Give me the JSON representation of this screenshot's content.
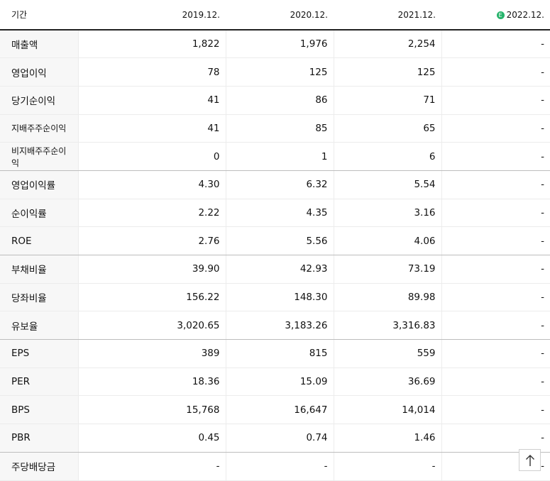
{
  "header": {
    "label": "기간",
    "periods": [
      "2019.12.",
      "2020.12.",
      "2021.12.",
      "2022.12."
    ],
    "estimate_badge": "E"
  },
  "rows": [
    {
      "label": "매출액",
      "values": [
        "1,822",
        "1,976",
        "2,254",
        "-"
      ]
    },
    {
      "label": "영업이익",
      "values": [
        "78",
        "125",
        "125",
        "-"
      ]
    },
    {
      "label": "당기순이익",
      "values": [
        "41",
        "86",
        "71",
        "-"
      ]
    },
    {
      "label": "지배주주순이익",
      "values": [
        "41",
        "85",
        "65",
        "-"
      ]
    },
    {
      "label": "비지배주주순이익",
      "values": [
        "0",
        "1",
        "6",
        "-"
      ]
    },
    {
      "label": "영업이익률",
      "values": [
        "4.30",
        "6.32",
        "5.54",
        "-"
      ]
    },
    {
      "label": "순이익률",
      "values": [
        "2.22",
        "4.35",
        "3.16",
        "-"
      ]
    },
    {
      "label": "ROE",
      "values": [
        "2.76",
        "5.56",
        "4.06",
        "-"
      ]
    },
    {
      "label": "부채비율",
      "values": [
        "39.90",
        "42.93",
        "73.19",
        "-"
      ]
    },
    {
      "label": "당좌비율",
      "values": [
        "156.22",
        "148.30",
        "89.98",
        "-"
      ]
    },
    {
      "label": "유보율",
      "values": [
        "3,020.65",
        "3,183.26",
        "3,316.83",
        "-"
      ]
    },
    {
      "label": "EPS",
      "values": [
        "389",
        "815",
        "559",
        "-"
      ]
    },
    {
      "label": "PER",
      "values": [
        "18.36",
        "15.09",
        "36.69",
        "-"
      ]
    },
    {
      "label": "BPS",
      "values": [
        "15,768",
        "16,647",
        "14,014",
        "-"
      ]
    },
    {
      "label": "PBR",
      "values": [
        "0.45",
        "0.74",
        "1.46",
        "-"
      ]
    },
    {
      "label": "주당배당금",
      "values": [
        "-",
        "-",
        "-",
        "-"
      ]
    }
  ],
  "scroll_top": {
    "icon": "arrow-up-icon"
  }
}
